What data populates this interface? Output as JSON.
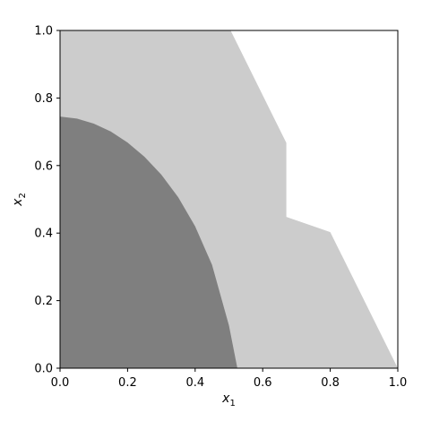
{
  "chart_data": {
    "type": "area",
    "title": "",
    "xlabel": {
      "base": "x",
      "sub": "1"
    },
    "ylabel": {
      "base": "x",
      "sub": "2"
    },
    "xlim": [
      0,
      1
    ],
    "ylim": [
      0,
      1
    ],
    "xticks": [
      0.0,
      0.2,
      0.4,
      0.6,
      0.8,
      1.0
    ],
    "yticks": [
      0.0,
      0.2,
      0.4,
      0.6,
      0.8,
      1.0
    ],
    "xtick_labels": [
      "0.0",
      "0.2",
      "0.4",
      "0.6",
      "0.8",
      "1.0"
    ],
    "ytick_labels": [
      "0.0",
      "0.2",
      "0.4",
      "0.6",
      "0.8",
      "1.0"
    ],
    "grid": false,
    "regions": [
      {
        "fill": "#cccccc",
        "boundary": [
          [
            0,
            0
          ],
          [
            0,
            1
          ],
          [
            0.505,
            1
          ],
          [
            0.67,
            0.667
          ],
          [
            0.67,
            0.448
          ],
          [
            0.8,
            0.403
          ],
          [
            1.0,
            0
          ],
          [
            0,
            0
          ]
        ]
      },
      {
        "fill": "#7f7f7f",
        "boundary": [
          [
            0,
            0
          ],
          [
            0,
            0.745
          ],
          [
            0.05,
            0.739
          ],
          [
            0.1,
            0.724
          ],
          [
            0.15,
            0.701
          ],
          [
            0.2,
            0.668
          ],
          [
            0.25,
            0.626
          ],
          [
            0.3,
            0.573
          ],
          [
            0.35,
            0.506
          ],
          [
            0.4,
            0.42
          ],
          [
            0.45,
            0.306
          ],
          [
            0.5,
            0.127
          ],
          [
            0.525,
            0.0
          ],
          [
            0,
            0
          ]
        ]
      }
    ]
  }
}
